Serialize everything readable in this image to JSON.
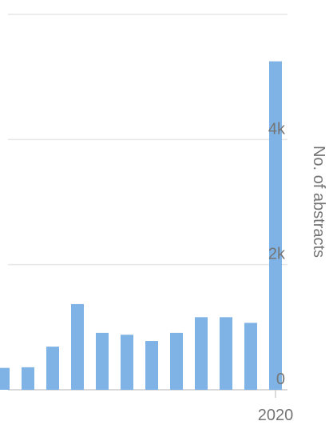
{
  "chart_data": {
    "type": "bar",
    "categories": [
      null,
      null,
      null,
      null,
      null,
      null,
      null,
      null,
      null,
      null,
      null,
      "2020"
    ],
    "values": [
      350,
      360,
      690,
      1370,
      910,
      880,
      780,
      910,
      1160,
      1160,
      1070,
      5250
    ],
    "color": "#7fb3e6",
    "ylim": [
      0,
      6000
    ],
    "yticks": [
      {
        "value": 0,
        "label": "0"
      },
      {
        "value": 2000,
        "label": "2k"
      },
      {
        "value": 4000,
        "label": "4k"
      }
    ],
    "ylabel": "No. of abstracts",
    "grid": true
  }
}
